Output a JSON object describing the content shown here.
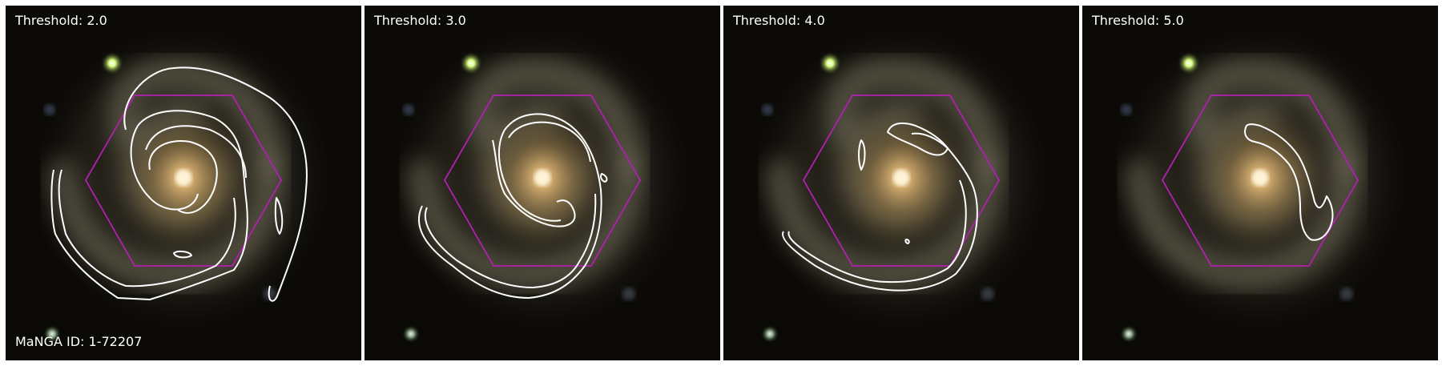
{
  "panels": [
    {
      "threshold_label": "Threshold: 2.0"
    },
    {
      "threshold_label": "Threshold: 3.0"
    },
    {
      "threshold_label": "Threshold: 4.0"
    },
    {
      "threshold_label": "Threshold: 5.0"
    }
  ],
  "manga_id_label": "MaNGA ID: 1-72207",
  "colors": {
    "background": "#0b0906",
    "contour": "#ffffff",
    "hexagon": "#b020b0",
    "galaxy_core": "#f0d090",
    "galaxy_arm": "#8a8468",
    "star_green": "#c8ff70"
  }
}
